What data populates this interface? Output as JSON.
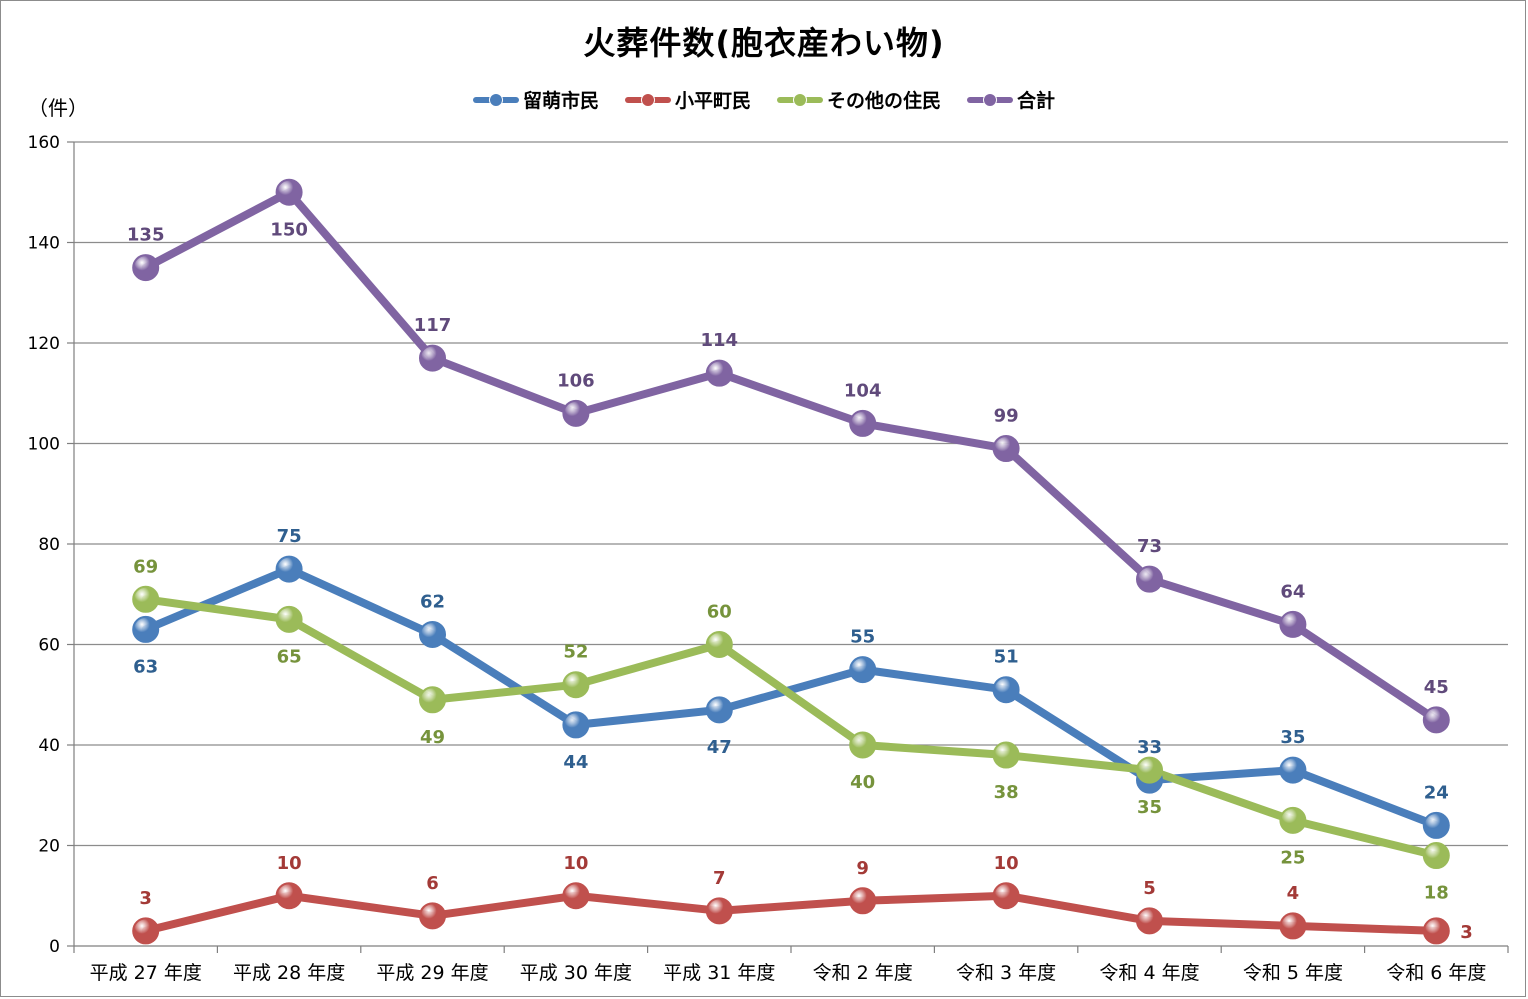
{
  "chart_data": {
    "type": "line",
    "title": "火葬件数(胞衣産わい物)",
    "ylabel": "（件）",
    "xlabel": "",
    "ylim": [
      0,
      160
    ],
    "yticks": [
      0,
      20,
      40,
      60,
      80,
      100,
      120,
      140,
      160
    ],
    "grid": true,
    "legend_position": "top",
    "categories": [
      "平成 27 年度",
      "平成 28 年度",
      "平成 29 年度",
      "平成 30 年度",
      "平成 31 年度",
      "令和 2 年度",
      "令和 3 年度",
      "令和 4 年度",
      "令和 5 年度",
      "令和 6 年度"
    ],
    "series": [
      {
        "name": "留萌市民",
        "color": "#4a7ebb",
        "label_color": "#2f5f8f",
        "values": [
          63,
          75,
          62,
          44,
          47,
          55,
          51,
          33,
          35,
          24
        ]
      },
      {
        "name": "小平町民",
        "color": "#c0504d",
        "label_color": "#a33a37",
        "values": [
          3,
          10,
          6,
          10,
          7,
          9,
          10,
          5,
          4,
          3
        ]
      },
      {
        "name": "その他の住民",
        "color": "#9bbb59",
        "label_color": "#76933c",
        "values": [
          69,
          65,
          49,
          52,
          60,
          40,
          38,
          35,
          25,
          18
        ]
      },
      {
        "name": "合計",
        "color": "#8064a2",
        "label_color": "#604a7b",
        "values": [
          135,
          150,
          117,
          106,
          114,
          104,
          99,
          73,
          64,
          45
        ]
      }
    ]
  }
}
